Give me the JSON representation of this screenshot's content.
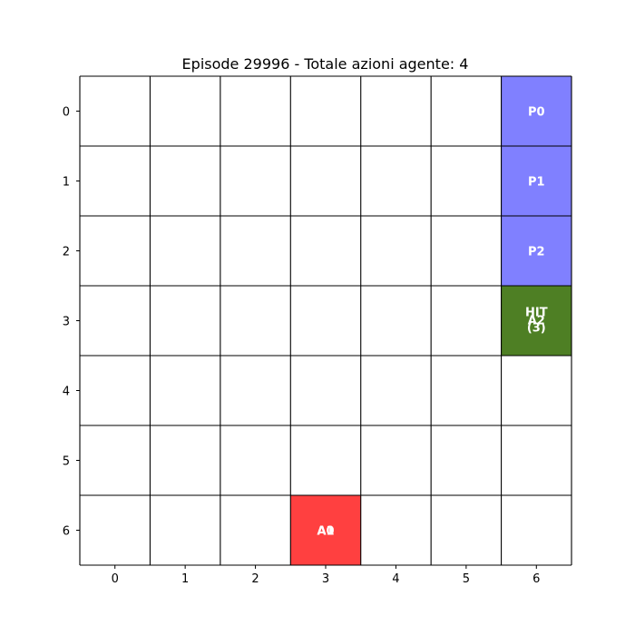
{
  "title": "Episode 29996 - Totale azioni agente: 4",
  "grid": {
    "rows": 7,
    "cols": 7,
    "x_ticks": [
      "0",
      "1",
      "2",
      "3",
      "4",
      "5",
      "6"
    ],
    "y_ticks": [
      "0",
      "1",
      "2",
      "3",
      "4",
      "5",
      "6"
    ]
  },
  "colors": {
    "pickup": "#8080ff",
    "hit": "#4e7f24",
    "agent": "#ff4040",
    "grid_line": "#000000",
    "background": "#ffffff"
  },
  "cells": [
    {
      "row": 0,
      "col": 6,
      "kind": "pickup",
      "labels": [
        "P0"
      ]
    },
    {
      "row": 1,
      "col": 6,
      "kind": "pickup",
      "labels": [
        "P1"
      ]
    },
    {
      "row": 2,
      "col": 6,
      "kind": "pickup",
      "labels": [
        "P2"
      ]
    },
    {
      "row": 3,
      "col": 6,
      "kind": "hit",
      "labels": [
        "HIT",
        "A2",
        "(3)"
      ]
    },
    {
      "row": 6,
      "col": 3,
      "kind": "agent",
      "labels": [
        "A0",
        "A1"
      ]
    }
  ]
}
